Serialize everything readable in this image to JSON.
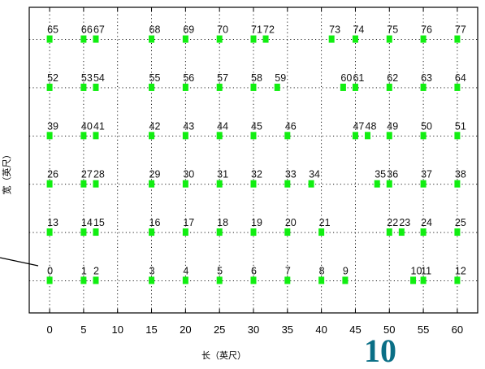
{
  "chart_data": {
    "type": "scatter",
    "title": "",
    "xlabel": "长（英尺）",
    "ylabel": "宽（英尺）",
    "xlim": [
      -3,
      63
    ],
    "ylim": [
      -8,
      68
    ],
    "xticks": [
      0,
      5,
      10,
      15,
      20,
      25,
      30,
      35,
      40,
      45,
      50,
      55,
      60
    ],
    "grid": true,
    "marker_color": "#11ee11",
    "series": [
      {
        "points": [
          {
            "id": "0",
            "x": 0,
            "y": 0
          },
          {
            "id": "1",
            "x": 5,
            "y": 0
          },
          {
            "id": "2",
            "x": 6.8,
            "y": 0
          },
          {
            "id": "3",
            "x": 15,
            "y": 0
          },
          {
            "id": "4",
            "x": 20,
            "y": 0
          },
          {
            "id": "5",
            "x": 25,
            "y": 0
          },
          {
            "id": "6",
            "x": 30,
            "y": 0
          },
          {
            "id": "7",
            "x": 35,
            "y": 0
          },
          {
            "id": "8",
            "x": 40,
            "y": 0
          },
          {
            "id": "9",
            "x": 43.5,
            "y": 0
          },
          {
            "id": "10",
            "x": 53.5,
            "y": 0
          },
          {
            "id": "11",
            "x": 55,
            "y": 0
          },
          {
            "id": "12",
            "x": 60,
            "y": 0
          },
          {
            "id": "13",
            "x": 0,
            "y": 12
          },
          {
            "id": "14",
            "x": 5,
            "y": 12
          },
          {
            "id": "15",
            "x": 6.8,
            "y": 12
          },
          {
            "id": "16",
            "x": 15,
            "y": 12
          },
          {
            "id": "17",
            "x": 20,
            "y": 12
          },
          {
            "id": "18",
            "x": 25,
            "y": 12
          },
          {
            "id": "19",
            "x": 30,
            "y": 12
          },
          {
            "id": "20",
            "x": 35,
            "y": 12
          },
          {
            "id": "21",
            "x": 40,
            "y": 12
          },
          {
            "id": "22",
            "x": 50,
            "y": 12
          },
          {
            "id": "23",
            "x": 51.8,
            "y": 12
          },
          {
            "id": "24",
            "x": 55,
            "y": 12
          },
          {
            "id": "25",
            "x": 60,
            "y": 12
          },
          {
            "id": "26",
            "x": 0,
            "y": 24
          },
          {
            "id": "27",
            "x": 5,
            "y": 24
          },
          {
            "id": "28",
            "x": 6.8,
            "y": 24
          },
          {
            "id": "29",
            "x": 15,
            "y": 24
          },
          {
            "id": "30",
            "x": 20,
            "y": 24
          },
          {
            "id": "31",
            "x": 25,
            "y": 24
          },
          {
            "id": "32",
            "x": 30,
            "y": 24
          },
          {
            "id": "33",
            "x": 35,
            "y": 24
          },
          {
            "id": "34",
            "x": 38.5,
            "y": 24
          },
          {
            "id": "35",
            "x": 48.2,
            "y": 24
          },
          {
            "id": "36",
            "x": 50,
            "y": 24
          },
          {
            "id": "37",
            "x": 55,
            "y": 24
          },
          {
            "id": "38",
            "x": 60,
            "y": 24
          },
          {
            "id": "39",
            "x": 0,
            "y": 36
          },
          {
            "id": "40",
            "x": 5,
            "y": 36
          },
          {
            "id": "41",
            "x": 6.8,
            "y": 36
          },
          {
            "id": "42",
            "x": 15,
            "y": 36
          },
          {
            "id": "43",
            "x": 20,
            "y": 36
          },
          {
            "id": "44",
            "x": 25,
            "y": 36
          },
          {
            "id": "45",
            "x": 30,
            "y": 36
          },
          {
            "id": "46",
            "x": 35,
            "y": 36
          },
          {
            "id": "47",
            "x": 45,
            "y": 36
          },
          {
            "id": "48",
            "x": 46.8,
            "y": 36
          },
          {
            "id": "49",
            "x": 50,
            "y": 36
          },
          {
            "id": "50",
            "x": 55,
            "y": 36
          },
          {
            "id": "51",
            "x": 60,
            "y": 36
          },
          {
            "id": "52",
            "x": 0,
            "y": 48
          },
          {
            "id": "53",
            "x": 5,
            "y": 48
          },
          {
            "id": "54",
            "x": 6.8,
            "y": 48
          },
          {
            "id": "55",
            "x": 15,
            "y": 48
          },
          {
            "id": "56",
            "x": 20,
            "y": 48
          },
          {
            "id": "57",
            "x": 25,
            "y": 48
          },
          {
            "id": "58",
            "x": 30,
            "y": 48
          },
          {
            "id": "59",
            "x": 33.5,
            "y": 48
          },
          {
            "id": "60",
            "x": 43.2,
            "y": 48
          },
          {
            "id": "61",
            "x": 45,
            "y": 48
          },
          {
            "id": "62",
            "x": 50,
            "y": 48
          },
          {
            "id": "63",
            "x": 55,
            "y": 48
          },
          {
            "id": "64",
            "x": 60,
            "y": 48
          },
          {
            "id": "65",
            "x": 0,
            "y": 60
          },
          {
            "id": "66",
            "x": 5,
            "y": 60
          },
          {
            "id": "67",
            "x": 6.8,
            "y": 60
          },
          {
            "id": "68",
            "x": 15,
            "y": 60
          },
          {
            "id": "69",
            "x": 20,
            "y": 60
          },
          {
            "id": "70",
            "x": 25,
            "y": 60
          },
          {
            "id": "71",
            "x": 30,
            "y": 60
          },
          {
            "id": "72",
            "x": 31.8,
            "y": 60
          },
          {
            "id": "73",
            "x": 41.5,
            "y": 60
          },
          {
            "id": "74",
            "x": 45,
            "y": 60
          },
          {
            "id": "75",
            "x": 50,
            "y": 60
          },
          {
            "id": "76",
            "x": 55,
            "y": 60
          },
          {
            "id": "77",
            "x": 60,
            "y": 60
          }
        ]
      }
    ]
  },
  "slide": {
    "page_number": "10"
  }
}
